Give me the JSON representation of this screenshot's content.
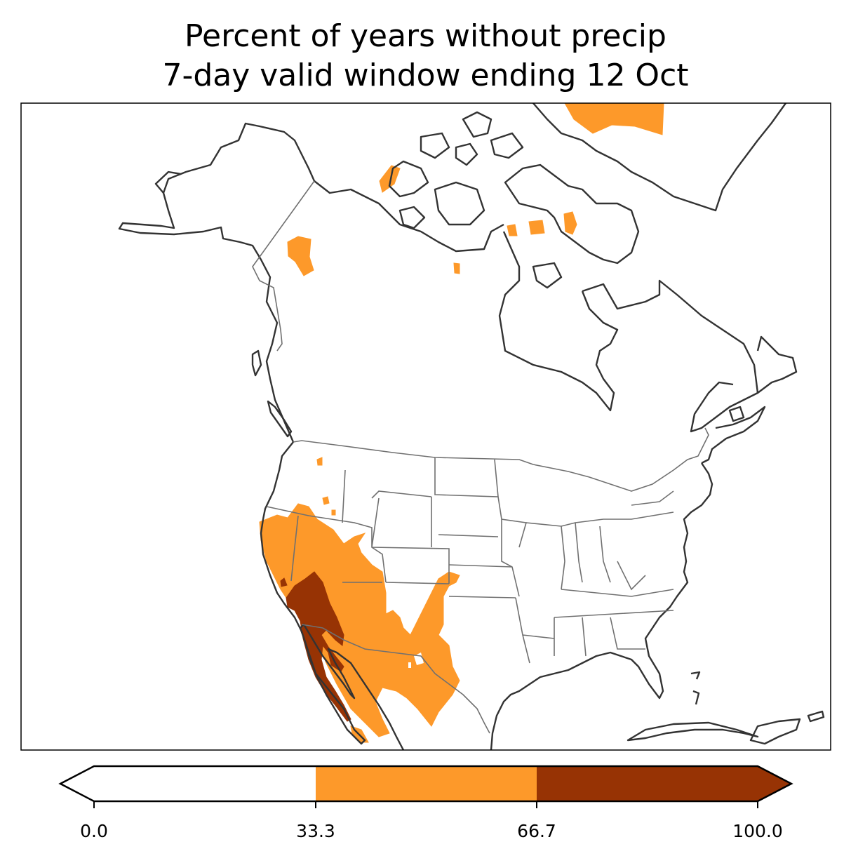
{
  "title_line1": "Percent of years without precip",
  "title_line2": "7-day valid window ending 12 Oct",
  "colorbar": {
    "ticks": [
      "0.0",
      "33.3",
      "66.7",
      "100.0"
    ],
    "bins": [
      {
        "range": "0.0–33.3",
        "color": "#ffffff"
      },
      {
        "range": "33.3–66.7",
        "color": "#fd992a"
      },
      {
        "range": "66.7–100.0",
        "color": "#973304"
      }
    ]
  },
  "colors": {
    "coastline": "#333333",
    "borders": "#707070",
    "low": "#ffffff",
    "mid": "#fd992a",
    "high": "#973304"
  }
}
